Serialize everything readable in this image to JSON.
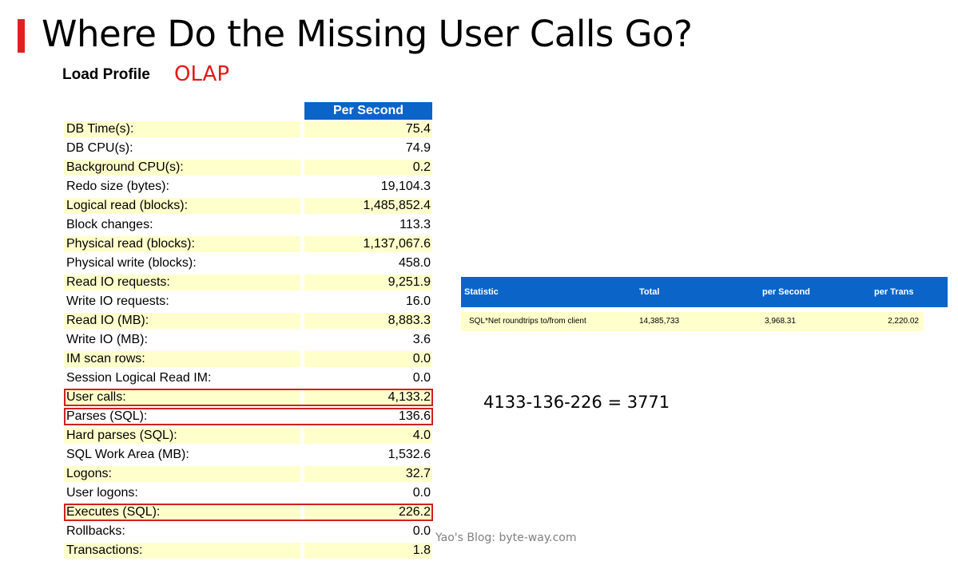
{
  "title": "Where Do the Missing User Calls Go?",
  "load_profile": {
    "label": "Load Profile",
    "tag": "OLAP",
    "column_header": "Per Second",
    "rows": [
      {
        "name": "DB Time(s):",
        "value": "75.4",
        "shaded": true,
        "highlighted": false
      },
      {
        "name": "DB CPU(s):",
        "value": "74.9",
        "shaded": false,
        "highlighted": false
      },
      {
        "name": "Background CPU(s):",
        "value": "0.2",
        "shaded": true,
        "highlighted": false
      },
      {
        "name": "Redo size (bytes):",
        "value": "19,104.3",
        "shaded": false,
        "highlighted": false
      },
      {
        "name": "Logical read (blocks):",
        "value": "1,485,852.4",
        "shaded": true,
        "highlighted": false
      },
      {
        "name": "Block changes:",
        "value": "113.3",
        "shaded": false,
        "highlighted": false
      },
      {
        "name": "Physical read (blocks):",
        "value": "1,137,067.6",
        "shaded": true,
        "highlighted": false
      },
      {
        "name": "Physical write (blocks):",
        "value": "458.0",
        "shaded": false,
        "highlighted": false
      },
      {
        "name": "Read IO requests:",
        "value": "9,251.9",
        "shaded": true,
        "highlighted": false
      },
      {
        "name": "Write IO requests:",
        "value": "16.0",
        "shaded": false,
        "highlighted": false
      },
      {
        "name": "Read IO (MB):",
        "value": "8,883.3",
        "shaded": true,
        "highlighted": false
      },
      {
        "name": "Write IO (MB):",
        "value": "3.6",
        "shaded": false,
        "highlighted": false
      },
      {
        "name": "IM scan rows:",
        "value": "0.0",
        "shaded": true,
        "highlighted": false
      },
      {
        "name": "Session Logical Read IM:",
        "value": "0.0",
        "shaded": false,
        "highlighted": false
      },
      {
        "name": "User calls:",
        "value": "4,133.2",
        "shaded": true,
        "highlighted": true
      },
      {
        "name": "Parses (SQL):",
        "value": "136.6",
        "shaded": false,
        "highlighted": true
      },
      {
        "name": "Hard parses (SQL):",
        "value": "4.0",
        "shaded": true,
        "highlighted": false
      },
      {
        "name": "SQL Work Area (MB):",
        "value": "1,532.6",
        "shaded": false,
        "highlighted": false
      },
      {
        "name": "Logons:",
        "value": "32.7",
        "shaded": true,
        "highlighted": false
      },
      {
        "name": "User logons:",
        "value": "0.0",
        "shaded": false,
        "highlighted": false
      },
      {
        "name": "Executes (SQL):",
        "value": "226.2",
        "shaded": true,
        "highlighted": true
      },
      {
        "name": "Rollbacks:",
        "value": "0.0",
        "shaded": false,
        "highlighted": false
      },
      {
        "name": "Transactions:",
        "value": "1.8",
        "shaded": true,
        "highlighted": false
      }
    ]
  },
  "stats_table": {
    "headers": [
      "Statistic",
      "Total",
      "per Second",
      "per Trans"
    ],
    "rows": [
      [
        "SQL*Net roundtrips to/from client",
        "14,385,733",
        "3,968.31",
        "2,220.02"
      ]
    ]
  },
  "formula": "4133-136-226 = 3771",
  "watermark": "Yao's Blog: byte-way.com",
  "colors": {
    "accent": "#e02020",
    "header_blue": "#0b64c8",
    "row_shade": "#ffffcc",
    "highlight_border": "#d02020"
  }
}
